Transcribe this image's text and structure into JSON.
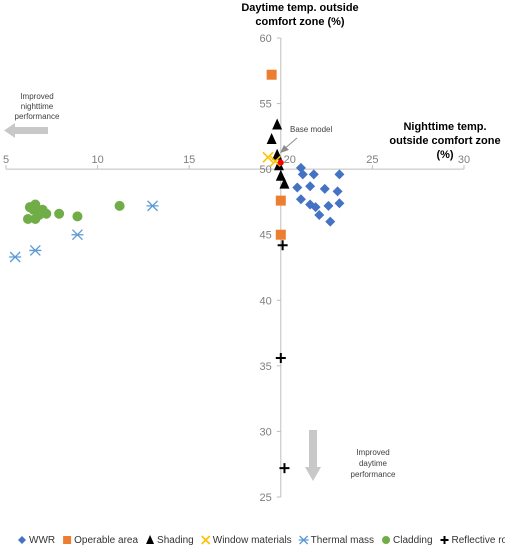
{
  "chart_data": {
    "type": "scatter",
    "title": "",
    "xlabel": "Nighttime temp. outside comfort zone (%)",
    "ylabel": "Daytime temp. outside comfort zone (%)",
    "xlim": [
      5,
      30
    ],
    "ylim": [
      25,
      60
    ],
    "x_ticks": [
      "5",
      "10",
      "15",
      "20",
      "25",
      "30"
    ],
    "y_ticks": [
      "25",
      "30",
      "35",
      "40",
      "45",
      "50",
      "55",
      "60"
    ],
    "x_axis_crosses_y_at": 50,
    "y_axis_crosses_x_at": 20,
    "grid": false,
    "legend_position": "bottom",
    "annotations": {
      "base_model": "Base model",
      "improved_nighttime": [
        "Improved",
        "nighttime",
        "performance"
      ],
      "improved_daytime": [
        "Improved",
        "daytime",
        "performance"
      ]
    },
    "series": [
      {
        "name": "WWR",
        "marker": "diamond",
        "color": "#4472c4",
        "points": [
          [
            20.9,
            48.6
          ],
          [
            21.1,
            50.1
          ],
          [
            21.2,
            49.6
          ],
          [
            21.8,
            49.6
          ],
          [
            21.6,
            48.7
          ],
          [
            22.4,
            48.5
          ],
          [
            23.1,
            48.3
          ],
          [
            23.2,
            49.6
          ],
          [
            21.1,
            47.7
          ],
          [
            21.6,
            47.3
          ],
          [
            21.9,
            47.1
          ],
          [
            22.6,
            47.2
          ],
          [
            23.2,
            47.4
          ],
          [
            22.1,
            46.5
          ],
          [
            22.7,
            46.0
          ]
        ]
      },
      {
        "name": "Operable area",
        "marker": "square",
        "color": "#ed7d31",
        "points": [
          [
            19.5,
            57.2
          ],
          [
            20.0,
            47.6
          ],
          [
            20.0,
            45.0
          ]
        ]
      },
      {
        "name": "Shading",
        "marker": "triangle",
        "color": "#000000",
        "points": [
          [
            19.8,
            53.4
          ],
          [
            19.5,
            52.3
          ],
          [
            19.8,
            51.1
          ],
          [
            19.9,
            50.3
          ],
          [
            20.0,
            49.5
          ],
          [
            20.2,
            48.9
          ]
        ]
      },
      {
        "name": "Window materials",
        "marker": "x",
        "color": "#ffc000",
        "points": [
          [
            19.3,
            50.9
          ],
          [
            19.7,
            50.6
          ]
        ]
      },
      {
        "name": "Thermal mass",
        "marker": "asterisk",
        "color": "#5b9bd5",
        "points": [
          [
            13.0,
            47.2
          ],
          [
            8.9,
            45.0
          ],
          [
            6.6,
            43.8
          ],
          [
            5.5,
            43.3
          ]
        ]
      },
      {
        "name": "Cladding",
        "marker": "circle",
        "color": "#70ad47",
        "points": [
          [
            11.2,
            47.2
          ],
          [
            8.9,
            46.4
          ],
          [
            7.9,
            46.6
          ],
          [
            7.0,
            46.9
          ],
          [
            6.8,
            46.5
          ],
          [
            6.6,
            46.2
          ],
          [
            6.2,
            46.2
          ],
          [
            6.3,
            47.1
          ],
          [
            6.6,
            47.3
          ],
          [
            6.9,
            46.8
          ],
          [
            7.2,
            46.6
          ],
          [
            6.5,
            46.9
          ]
        ]
      },
      {
        "name": "Reflective roof",
        "marker": "plus",
        "color": "#000000",
        "points": [
          [
            20.1,
            44.2
          ],
          [
            20.0,
            35.6
          ],
          [
            20.2,
            27.2
          ]
        ]
      },
      {
        "name": "",
        "marker": "circle",
        "color": "#ff0000",
        "points": [
          [
            20.0,
            50.5
          ]
        ]
      }
    ]
  }
}
